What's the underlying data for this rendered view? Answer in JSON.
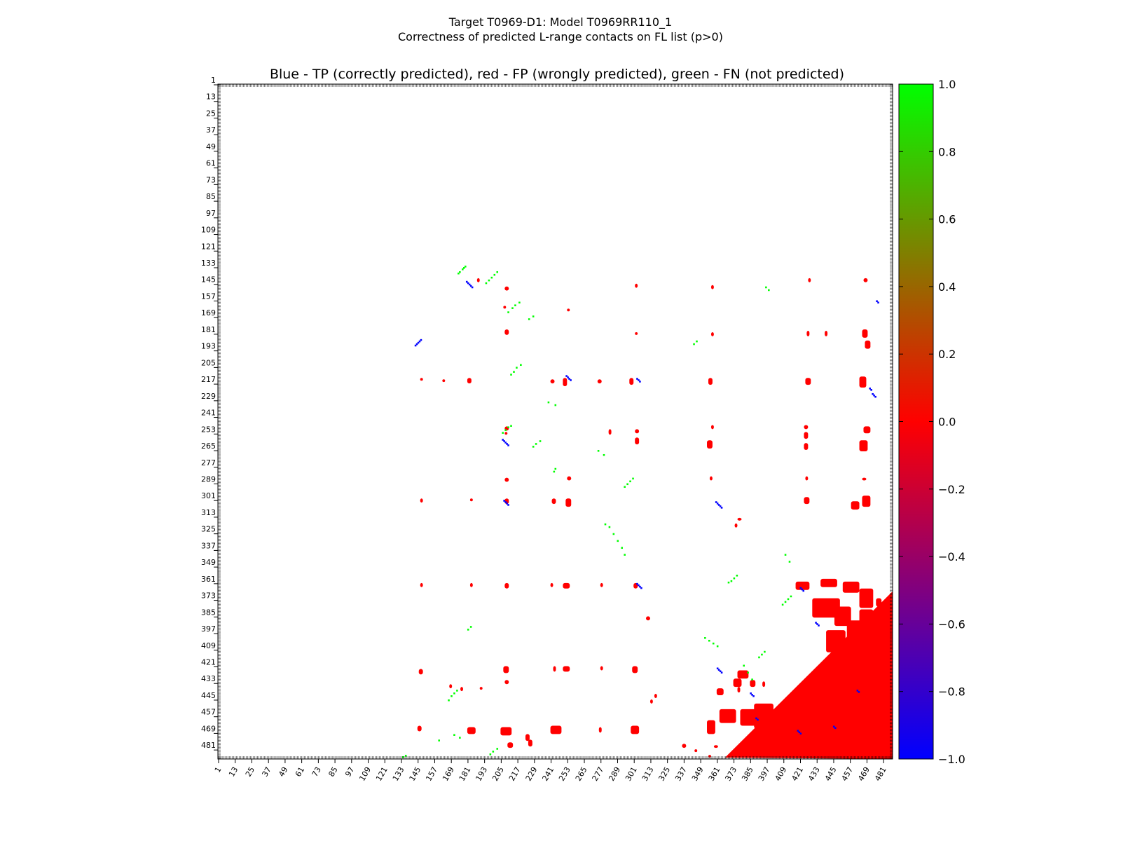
{
  "figure": {
    "title_line1": "Target T0969-D1: Model T0969RR110_1",
    "title_line2": "Correctness of predicted L-range contacts on FL list (p>0)"
  },
  "chart_data": {
    "type": "heatmap",
    "title": "Blue - TP (correctly predicted), red - FP (wrongly predicted), green - FN (not predicted)",
    "xlabel": "",
    "ylabel": "",
    "xlim": [
      1,
      487
    ],
    "ylim": [
      1,
      487
    ],
    "x_ticks": [
      "1",
      "13",
      "25",
      "37",
      "49",
      "61",
      "73",
      "85",
      "97",
      "109",
      "121",
      "133",
      "145",
      "157",
      "169",
      "181",
      "193",
      "205",
      "217",
      "229",
      "241",
      "253",
      "265",
      "277",
      "289",
      "301",
      "313",
      "325",
      "337",
      "349",
      "361",
      "373",
      "385",
      "397",
      "409",
      "421",
      "433",
      "445",
      "457",
      "469",
      "481"
    ],
    "y_ticks": [
      "1",
      "13",
      "25",
      "37",
      "49",
      "61",
      "73",
      "85",
      "97",
      "109",
      "121",
      "133",
      "145",
      "157",
      "169",
      "181",
      "193",
      "205",
      "217",
      "229",
      "241",
      "253",
      "265",
      "277",
      "289",
      "301",
      "313",
      "325",
      "337",
      "349",
      "361",
      "373",
      "385",
      "397",
      "409",
      "421",
      "433",
      "445",
      "457",
      "469",
      "481"
    ],
    "colorbar": {
      "range": [
        -1.0,
        1.0
      ],
      "ticks": [
        "1.0",
        "0.8",
        "0.6",
        "0.4",
        "0.2",
        "0.0",
        "−0.2",
        "−0.4",
        "−0.6",
        "−0.8",
        "−1.0"
      ],
      "colors": {
        "low": "#0000ff",
        "mid": "#ff0000",
        "high": "#00ff00"
      }
    },
    "legend": {
      "tp_color": "#0000ff",
      "fp_color": "#ff0000",
      "fn_color": "#00ff00"
    },
    "fn_contacts": [
      [
        134,
        177
      ],
      [
        133,
        178
      ],
      [
        132,
        179
      ],
      [
        136,
        175
      ],
      [
        137,
        174
      ],
      [
        140,
        198
      ],
      [
        138,
        200
      ],
      [
        136,
        202
      ],
      [
        142,
        196
      ],
      [
        144,
        194
      ],
      [
        160,
        215
      ],
      [
        162,
        213
      ],
      [
        158,
        218
      ],
      [
        165,
        210
      ],
      [
        168,
        228
      ],
      [
        170,
        225
      ],
      [
        205,
        216
      ],
      [
        208,
        214
      ],
      [
        203,
        219
      ],
      [
        210,
        212
      ],
      [
        250,
        208
      ],
      [
        248,
        210
      ],
      [
        247,
        212
      ],
      [
        252,
        206
      ],
      [
        260,
        230
      ],
      [
        262,
        228
      ],
      [
        258,
        233
      ],
      [
        278,
        244
      ],
      [
        280,
        243
      ],
      [
        285,
        300
      ],
      [
        287,
        298
      ],
      [
        289,
        296
      ],
      [
        291,
        294
      ],
      [
        318,
        280
      ],
      [
        320,
        283
      ],
      [
        325,
        286
      ],
      [
        330,
        289
      ],
      [
        335,
        292
      ],
      [
        340,
        294
      ],
      [
        355,
        375
      ],
      [
        357,
        373
      ],
      [
        359,
        371
      ],
      [
        360,
        369
      ],
      [
        370,
        414
      ],
      [
        372,
        412
      ],
      [
        374,
        410
      ],
      [
        376,
        408
      ],
      [
        400,
        352
      ],
      [
        402,
        355
      ],
      [
        404,
        358
      ],
      [
        406,
        361
      ],
      [
        410,
        395
      ],
      [
        412,
        393
      ],
      [
        414,
        391
      ],
      [
        440,
        171
      ],
      [
        438,
        173
      ],
      [
        442,
        169
      ],
      [
        445,
        167
      ],
      [
        480,
        202
      ],
      [
        482,
        199
      ],
      [
        484,
        197
      ],
      [
        486,
        134
      ],
      [
        485,
        136
      ],
      [
        394,
        181
      ],
      [
        392,
        183
      ],
      [
        470,
        171
      ],
      [
        472,
        175
      ],
      [
        474,
        160
      ],
      [
        230,
        239
      ],
      [
        232,
        244
      ],
      [
        265,
        275
      ],
      [
        268,
        279
      ],
      [
        340,
        410
      ],
      [
        345,
        413
      ],
      [
        420,
        380
      ],
      [
        425,
        383
      ],
      [
        430,
        386
      ],
      [
        186,
        346
      ],
      [
        188,
        344
      ],
      [
        147,
        396
      ],
      [
        149,
        398
      ]
    ],
    "tp_contacts": [
      [
        145,
        182
      ],
      [
        146,
        183
      ],
      [
        147,
        184
      ],
      [
        144,
        181
      ],
      [
        143,
        180
      ],
      [
        187,
        145
      ],
      [
        186,
        146
      ],
      [
        185,
        147
      ],
      [
        188,
        144
      ],
      [
        189,
        143
      ],
      [
        212,
        253
      ],
      [
        213,
        254
      ],
      [
        214,
        255
      ],
      [
        211,
        252
      ],
      [
        214,
        304
      ],
      [
        215,
        305
      ],
      [
        213,
        303
      ],
      [
        258,
        207
      ],
      [
        259,
        208
      ],
      [
        260,
        209
      ],
      [
        261,
        210
      ],
      [
        257,
        206
      ],
      [
        302,
        208
      ],
      [
        303,
        209
      ],
      [
        304,
        210
      ],
      [
        301,
        207
      ],
      [
        303,
        361
      ],
      [
        304,
        362
      ],
      [
        305,
        363
      ],
      [
        302,
        360
      ],
      [
        306,
        364
      ],
      [
        362,
        304
      ],
      [
        363,
        305
      ],
      [
        364,
        306
      ],
      [
        361,
        303
      ],
      [
        364,
        421
      ],
      [
        365,
        422
      ],
      [
        366,
        423
      ],
      [
        422,
        361
      ],
      [
        423,
        362
      ],
      [
        424,
        363
      ],
      [
        425,
        364
      ],
      [
        440,
        385
      ],
      [
        441,
        386
      ],
      [
        442,
        387
      ],
      [
        458,
        389
      ],
      [
        459,
        390
      ],
      [
        467,
        419
      ],
      [
        468,
        420
      ],
      [
        469,
        421
      ],
      [
        390,
        433
      ],
      [
        391,
        434
      ],
      [
        389,
        432
      ],
      [
        225,
        474
      ],
      [
        226,
        475
      ],
      [
        224,
        473
      ],
      [
        158,
        477
      ],
      [
        157,
        476
      ],
      [
        220,
        471
      ],
      [
        221,
        472
      ],
      [
        438,
        462
      ],
      [
        439,
        463
      ],
      [
        464,
        445
      ],
      [
        465,
        446
      ]
    ],
    "fp_blocks": [
      [
        141,
        188,
        3,
        2
      ],
      [
        147,
        208,
        3,
        3
      ],
      [
        145,
        302,
        3,
        2
      ],
      [
        146,
        357,
        3,
        2
      ],
      [
        141,
        427,
        3,
        2
      ],
      [
        141,
        467,
        3,
        3
      ],
      [
        161,
        207,
        2,
        2
      ],
      [
        163,
        253,
        2,
        2
      ],
      [
        178,
        208,
        4,
        3
      ],
      [
        180,
        302,
        2,
        2
      ],
      [
        180,
        357,
        3,
        2
      ],
      [
        179,
        426,
        4,
        2
      ],
      [
        179,
        439,
        4,
        2
      ],
      [
        178,
        466,
        6,
        4
      ],
      [
        186,
        468,
        6,
        4
      ],
      [
        213,
        147,
        2,
        2
      ],
      [
        214,
        163,
        2,
        2
      ],
      [
        213,
        181,
        4,
        3
      ],
      [
        214,
        241,
        3,
        3
      ],
      [
        213,
        250,
        6,
        3
      ],
      [
        214,
        275,
        3,
        3
      ],
      [
        213,
        298,
        5,
        3
      ],
      [
        213,
        355,
        5,
        3
      ],
      [
        213,
        425,
        5,
        4
      ],
      [
        212,
        464,
        8,
        5
      ],
      [
        248,
        208,
        3,
        3
      ],
      [
        252,
        208,
        2,
        2
      ],
      [
        250,
        283,
        4,
        2
      ],
      [
        250,
        302,
        3,
        3
      ],
      [
        247,
        357,
        3,
        2
      ],
      [
        247,
        424,
        3,
        3
      ],
      [
        252,
        424,
        5,
        3
      ],
      [
        248,
        467,
        5,
        5
      ],
      [
        256,
        302,
        5,
        3
      ],
      [
        258,
        354,
        6,
        4
      ],
      [
        260,
        424,
        5,
        3
      ],
      [
        258,
        464,
        8,
        6
      ],
      [
        285,
        208,
        3,
        3
      ],
      [
        284,
        253,
        3,
        3
      ],
      [
        284,
        356,
        3,
        2
      ],
      [
        284,
        425,
        3,
        2
      ],
      [
        285,
        466,
        2,
        3
      ],
      [
        300,
        147,
        3,
        2
      ],
      [
        300,
        183,
        2,
        2
      ],
      [
        300,
        208,
        4,
        3
      ],
      [
        300,
        242,
        4,
        3
      ],
      [
        300,
        252,
        6,
        4
      ],
      [
        299,
        424,
        5,
        4
      ],
      [
        298,
        466,
        8,
        6
      ],
      [
        302,
        458,
        6,
        6
      ],
      [
        314,
        376,
        2,
        3
      ],
      [
        318,
        374,
        3,
        2
      ],
      [
        361,
        147,
        3,
        2
      ],
      [
        361,
        183,
        3,
        2
      ],
      [
        361,
        208,
        4,
        3
      ],
      [
        361,
        241,
        3,
        2
      ],
      [
        361,
        250,
        4,
        5
      ],
      [
        361,
        277,
        3,
        2
      ],
      [
        361,
        301,
        4,
        3
      ],
      [
        385,
        310,
        3,
        3
      ],
      [
        423,
        146,
        4,
        3
      ],
      [
        421,
        207,
        5,
        4
      ],
      [
        421,
        243,
        4,
        2
      ],
      [
        421,
        250,
        4,
        5
      ],
      [
        421,
        277,
        3,
        2
      ],
      [
        421,
        300,
        5,
        4
      ],
      [
        431,
        208,
        3,
        3
      ],
      [
        437,
        361,
        5,
        5
      ],
      [
        434,
        168,
        3,
        2
      ],
      [
        436,
        176,
        3,
        2
      ],
      [
        436,
        190,
        2,
        2
      ],
      [
        441,
        316,
        3,
        2
      ],
      [
        442,
        418,
        2,
        2
      ],
      [
        464,
        145,
        4,
        3
      ],
      [
        465,
        181,
        5,
        6
      ],
      [
        465,
        205,
        6,
        8
      ],
      [
        464,
        241,
        6,
        8
      ],
      [
        465,
        276,
        4,
        2
      ],
      [
        464,
        299,
        6,
        6
      ],
      [
        476,
        210,
        4,
        4
      ],
      [
        470,
        223,
        5,
        3
      ],
      [
        474,
        225,
        5,
        3
      ],
      [
        460,
        354,
        10,
        6
      ],
      [
        452,
        363,
        10,
        12
      ],
      [
        452,
        378,
        12,
        14
      ],
      [
        448,
        388,
        18,
        14
      ],
      [
        452,
        404,
        14,
        12
      ],
      [
        466,
        406,
        16,
        12
      ],
      [
        437,
        468,
        3,
        2
      ],
      [
        436,
        376,
        4,
        2
      ],
      [
        431,
        385,
        5,
        4
      ],
      [
        432,
        394,
        4,
        2
      ],
      [
        445,
        313,
        3,
        2
      ],
      [
        360,
        418,
        6,
        10
      ],
      [
        358,
        436,
        6,
        12
      ],
      [
        360,
        452,
        8,
        12
      ],
      [
        372,
        430,
        14,
        20
      ],
      [
        378,
        446,
        14,
        12
      ],
      [
        388,
        455,
        14,
        14
      ],
      [
        395,
        440,
        16,
        14
      ],
      [
        405,
        466,
        14,
        14
      ],
      [
        418,
        462,
        14,
        16
      ],
      [
        431,
        472,
        10,
        14
      ],
      [
        365,
        464,
        14,
        10
      ],
      [
        380,
        464,
        10,
        10
      ],
      [
        372,
        476,
        6,
        4
      ],
      [
        388,
        474,
        6,
        6
      ],
      [
        477,
        336,
        3,
        3
      ],
      [
        481,
        345,
        2,
        2
      ],
      [
        478,
        359,
        2,
        3
      ],
      [
        424,
        376,
        6,
        8
      ],
      [
        430,
        373,
        6,
        6
      ],
      [
        485,
        355,
        2,
        2
      ]
    ],
    "fp_triangle_vertex_a": [
      487,
      367
    ],
    "fp_triangle_vertex_b": [
      487,
      487
    ],
    "fp_triangle_vertex_c": [
      367,
      487
    ]
  }
}
